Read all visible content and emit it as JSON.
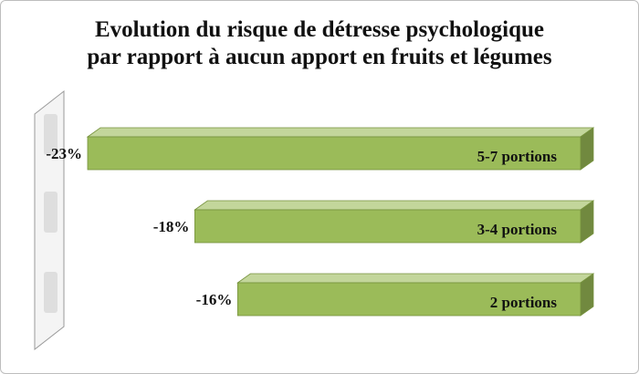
{
  "chart_data": {
    "type": "bar",
    "orientation": "horizontal",
    "style": "3d",
    "title": "Evolution du risque de détresse psychologique par rapport à aucun apport en fruits et légumes",
    "title_lines": [
      "Evolution du risque de détresse psychologique",
      "par rapport à aucun apport en fruits et légumes"
    ],
    "categories": [
      "5-7 portions",
      "3-4 portions",
      "2 portions"
    ],
    "values": [
      -23,
      -18,
      -16
    ],
    "value_labels": [
      "-23%",
      "-18%",
      "-16%"
    ],
    "unit": "%",
    "xlim": [
      -23,
      0
    ],
    "grid": false,
    "legend": "none",
    "colors": {
      "bar_front": "#9bbb59",
      "bar_top": "#c3d69b",
      "bar_side": "#71893f",
      "bar_edge": "#76923c",
      "wall_fill": "#f4f4f4",
      "wall_stroke": "#9a9a9a",
      "text": "#111111"
    }
  }
}
